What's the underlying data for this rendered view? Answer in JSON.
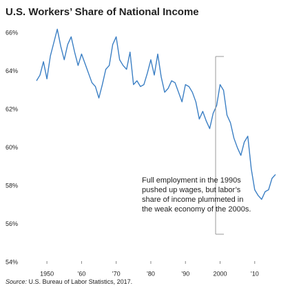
{
  "chart_data": {
    "type": "line",
    "title": "U.S. Workers’ Share of National Income",
    "annotation": [
      "Full employment in the 1990s",
      "pushed up wages, but labor’s",
      "share of income plummeted in",
      "the weak economy of the 2000s."
    ],
    "source_label": "Source:",
    "source": "U.S. Bureau of Labor Statistics, 2017.",
    "color": "#3b7fc4",
    "x": [
      1947,
      1948,
      1949,
      1950,
      1951,
      1952,
      1953,
      1954,
      1955,
      1956,
      1957,
      1958,
      1959,
      1960,
      1961,
      1962,
      1963,
      1964,
      1965,
      1966,
      1967,
      1968,
      1969,
      1970,
      1971,
      1972,
      1973,
      1974,
      1975,
      1976,
      1977,
      1978,
      1979,
      1980,
      1981,
      1982,
      1983,
      1984,
      1985,
      1986,
      1987,
      1988,
      1989,
      1990,
      1991,
      1992,
      1993,
      1994,
      1995,
      1996,
      1997,
      1998,
      1999,
      2000,
      2001,
      2002,
      2003,
      2004,
      2005,
      2006,
      2007,
      2008,
      2009,
      2010,
      2011,
      2012,
      2013,
      2014,
      2015,
      2016
    ],
    "values": [
      63.5,
      63.8,
      64.5,
      63.6,
      64.8,
      65.5,
      66.2,
      65.3,
      64.6,
      65.4,
      65.8,
      65.0,
      64.3,
      64.9,
      64.4,
      63.9,
      63.4,
      63.2,
      62.6,
      63.3,
      64.1,
      64.3,
      65.4,
      65.8,
      64.6,
      64.3,
      64.1,
      65.0,
      63.3,
      63.5,
      63.2,
      63.3,
      63.9,
      64.6,
      63.8,
      64.9,
      63.7,
      62.9,
      63.1,
      63.5,
      63.4,
      62.9,
      62.4,
      63.3,
      63.2,
      62.9,
      62.4,
      61.5,
      61.9,
      61.4,
      61.0,
      61.8,
      62.2,
      63.3,
      63.0,
      61.7,
      61.3,
      60.5,
      60.0,
      59.6,
      60.3,
      60.6,
      58.9,
      57.8,
      57.5,
      57.3,
      57.7,
      57.8,
      58.4,
      58.6
    ],
    "xlim": [
      1946,
      2018
    ],
    "xticks": [
      {
        "value": 1950,
        "label": "1950"
      },
      {
        "value": 1960,
        "label": "’60"
      },
      {
        "value": 1970,
        "label": "’70"
      },
      {
        "value": 1980,
        "label": "’80"
      },
      {
        "value": 1990,
        "label": "’90"
      },
      {
        "value": 2000,
        "label": "2000"
      },
      {
        "value": 2010,
        "label": "’10"
      }
    ],
    "ylim": [
      54,
      66.5
    ],
    "yticks": [
      {
        "value": 54,
        "label": "54%"
      },
      {
        "value": 56,
        "label": "56%"
      },
      {
        "value": 58,
        "label": "58%"
      },
      {
        "value": 60,
        "label": "60%"
      },
      {
        "value": 62,
        "label": "62%"
      },
      {
        "value": 64,
        "label": "64%"
      },
      {
        "value": 66,
        "label": "66%"
      }
    ]
  }
}
